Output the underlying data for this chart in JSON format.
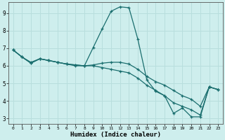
{
  "xlabel": "Humidex (Indice chaleur)",
  "xlim": [
    -0.5,
    23.5
  ],
  "ylim": [
    2.7,
    9.6
  ],
  "yticks": [
    3,
    4,
    5,
    6,
    7,
    8,
    9
  ],
  "xticks": [
    0,
    1,
    2,
    3,
    4,
    5,
    6,
    7,
    8,
    9,
    10,
    11,
    12,
    13,
    14,
    15,
    16,
    17,
    18,
    19,
    20,
    21,
    22,
    23
  ],
  "bg_color": "#ceeeed",
  "grid_color": "#b8dedd",
  "line_color": "#1a6e6e",
  "line1_x": [
    0,
    1,
    2,
    3,
    4,
    5,
    6,
    7,
    8,
    9,
    10,
    11,
    12,
    13,
    14,
    15,
    16,
    17,
    18,
    19,
    20,
    21,
    22,
    23
  ],
  "line1_y": [
    6.9,
    6.5,
    6.2,
    6.4,
    6.3,
    6.2,
    6.1,
    6.0,
    6.0,
    7.05,
    8.1,
    9.1,
    9.35,
    9.3,
    7.5,
    5.2,
    4.55,
    4.3,
    3.3,
    3.6,
    3.1,
    3.1,
    4.8,
    4.65
  ],
  "line2_x": [
    0,
    1,
    2,
    3,
    4,
    5,
    6,
    7,
    8,
    9,
    10,
    11,
    12,
    13,
    14,
    15,
    16,
    17,
    18,
    19,
    20,
    21,
    22,
    23
  ],
  "line2_y": [
    6.9,
    6.5,
    6.15,
    6.4,
    6.3,
    6.2,
    6.1,
    6.05,
    6.0,
    6.0,
    5.9,
    5.8,
    5.7,
    5.6,
    5.3,
    4.9,
    4.6,
    4.3,
    3.9,
    3.7,
    3.5,
    3.2,
    4.8,
    4.65
  ],
  "line3_x": [
    0,
    1,
    2,
    3,
    4,
    5,
    6,
    7,
    8,
    9,
    10,
    11,
    12,
    13,
    14,
    15,
    16,
    17,
    18,
    19,
    20,
    21,
    22,
    23
  ],
  "line3_y": [
    6.9,
    6.5,
    6.15,
    6.4,
    6.3,
    6.2,
    6.1,
    6.05,
    6.0,
    6.05,
    6.15,
    6.2,
    6.2,
    6.1,
    5.8,
    5.4,
    5.1,
    4.9,
    4.6,
    4.3,
    4.1,
    3.7,
    4.8,
    4.65
  ]
}
